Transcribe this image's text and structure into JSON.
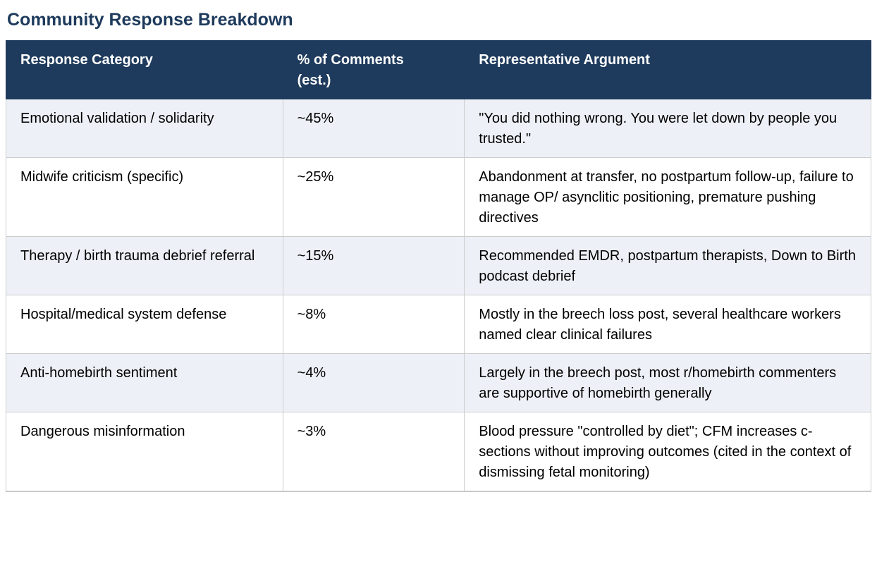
{
  "page_title": "Community Response Breakdown",
  "colors": {
    "header_bg": "#1e3a5c",
    "title_text": "#1e3a5c",
    "row_alt_bg": "#edf1f7",
    "row_bg": "#ffffff",
    "border": "#cccccc",
    "header_text": "#ffffff",
    "body_text": "#000000"
  },
  "table": {
    "columns": {
      "category": "Response Category",
      "percent": "% of Comments (est.)",
      "argument": "Representative Argument"
    },
    "rows": [
      {
        "category": "Emotional validation / solidarity",
        "percent": "~45%",
        "argument": "\"You did nothing wrong. You were let down by people you trusted.\""
      },
      {
        "category": "Midwife criticism (specific)",
        "percent": "~25%",
        "argument": "Abandonment at transfer, no postpartum follow-up, failure to manage OP/ asynclitic positioning, premature pushing directives"
      },
      {
        "category": "Therapy / birth trauma debrief referral",
        "percent": "~15%",
        "argument": "Recommended EMDR, postpartum therapists, Down to Birth podcast debrief"
      },
      {
        "category": "Hospital/medical system defense",
        "percent": "~8%",
        "argument": "Mostly in the breech loss post, several healthcare workers named clear clinical failures"
      },
      {
        "category": "Anti-homebirth sentiment",
        "percent": "~4%",
        "argument": "Largely in the breech post, most r/homebirth commenters are supportive of homebirth generally"
      },
      {
        "category": "Dangerous misinformation",
        "percent": "~3%",
        "argument": "Blood pressure \"controlled by diet\"; CFM increases c-sections without improving outcomes (cited in the context of dismissing fetal monitoring)"
      }
    ]
  }
}
